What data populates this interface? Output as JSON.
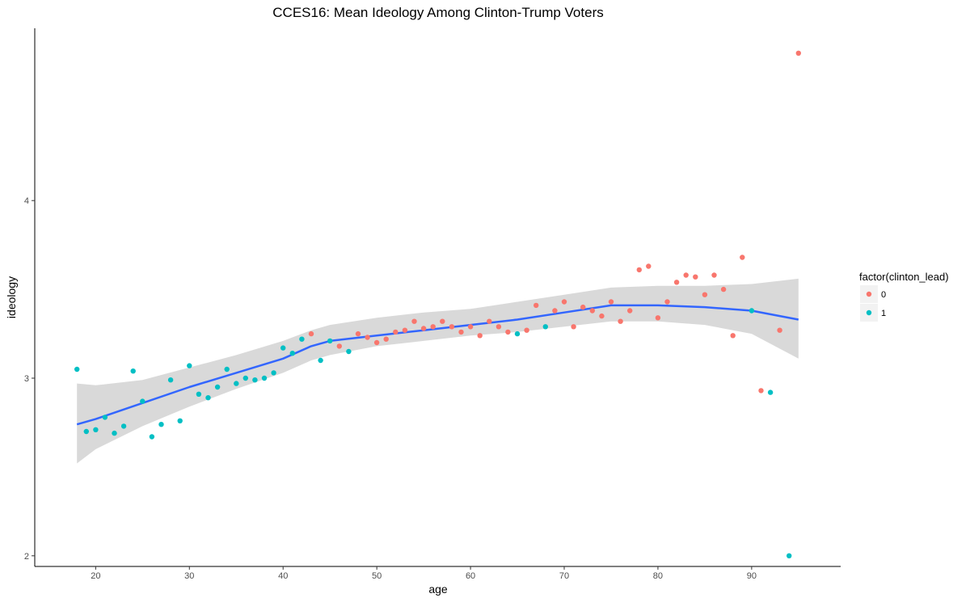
{
  "chart_data": {
    "type": "scatter",
    "title": "CCES16: Mean Ideology Among Clinton-Trump Voters",
    "xlabel": "age",
    "ylabel": "ideology",
    "xlim": [
      13.5,
      99.5
    ],
    "ylim": [
      1.94,
      4.97
    ],
    "x_ticks": [
      20,
      30,
      40,
      50,
      60,
      70,
      80,
      90
    ],
    "y_ticks": [
      2,
      3,
      4
    ],
    "grid": false,
    "legend": {
      "title": "factor(clinton_lead)",
      "position": "right",
      "entries": [
        {
          "label": "0",
          "color": "#F8766D"
        },
        {
          "label": "1",
          "color": "#00BFC4"
        }
      ]
    },
    "series": [
      {
        "name": "0",
        "color": "#F8766D",
        "points": [
          [
            43,
            3.25
          ],
          [
            46,
            3.18
          ],
          [
            48,
            3.25
          ],
          [
            49,
            3.23
          ],
          [
            50,
            3.2
          ],
          [
            51,
            3.22
          ],
          [
            52,
            3.26
          ],
          [
            53,
            3.27
          ],
          [
            54,
            3.32
          ],
          [
            55,
            3.28
          ],
          [
            56,
            3.29
          ],
          [
            57,
            3.32
          ],
          [
            58,
            3.29
          ],
          [
            59,
            3.26
          ],
          [
            60,
            3.29
          ],
          [
            61,
            3.24
          ],
          [
            62,
            3.32
          ],
          [
            63,
            3.29
          ],
          [
            64,
            3.26
          ],
          [
            66,
            3.27
          ],
          [
            67,
            3.41
          ],
          [
            69,
            3.38
          ],
          [
            70,
            3.43
          ],
          [
            71,
            3.29
          ],
          [
            72,
            3.4
          ],
          [
            73,
            3.38
          ],
          [
            74,
            3.35
          ],
          [
            75,
            3.43
          ],
          [
            76,
            3.32
          ],
          [
            77,
            3.38
          ],
          [
            78,
            3.61
          ],
          [
            79,
            3.63
          ],
          [
            80,
            3.34
          ],
          [
            81,
            3.43
          ],
          [
            82,
            3.54
          ],
          [
            83,
            3.58
          ],
          [
            84,
            3.57
          ],
          [
            85,
            3.47
          ],
          [
            86,
            3.58
          ],
          [
            87,
            3.5
          ],
          [
            88,
            3.24
          ],
          [
            89,
            3.68
          ],
          [
            91,
            2.93
          ],
          [
            93,
            3.27
          ],
          [
            95,
            4.83
          ]
        ]
      },
      {
        "name": "1",
        "color": "#00BFC4",
        "points": [
          [
            18,
            3.05
          ],
          [
            19,
            2.7
          ],
          [
            20,
            2.71
          ],
          [
            21,
            2.78
          ],
          [
            22,
            2.69
          ],
          [
            23,
            2.73
          ],
          [
            24,
            3.04
          ],
          [
            25,
            2.87
          ],
          [
            26,
            2.67
          ],
          [
            27,
            2.74
          ],
          [
            28,
            2.99
          ],
          [
            29,
            2.76
          ],
          [
            30,
            3.07
          ],
          [
            31,
            2.91
          ],
          [
            32,
            2.89
          ],
          [
            33,
            2.95
          ],
          [
            34,
            3.05
          ],
          [
            35,
            2.97
          ],
          [
            36,
            3.0
          ],
          [
            37,
            2.99
          ],
          [
            38,
            3.0
          ],
          [
            39,
            3.03
          ],
          [
            40,
            3.17
          ],
          [
            41,
            3.14
          ],
          [
            42,
            3.22
          ],
          [
            44,
            3.1
          ],
          [
            45,
            3.21
          ],
          [
            47,
            3.15
          ],
          [
            65,
            3.25
          ],
          [
            68,
            3.29
          ],
          [
            90,
            3.38
          ],
          [
            92,
            2.92
          ],
          [
            94,
            2.0
          ]
        ]
      }
    ],
    "smooth": {
      "color": "#3366FF",
      "band_color": "#d9d9d9",
      "x": [
        18,
        20,
        25,
        30,
        35,
        40,
        43,
        45,
        50,
        55,
        60,
        65,
        70,
        75,
        80,
        85,
        90,
        95
      ],
      "y": [
        2.74,
        2.77,
        2.86,
        2.95,
        3.03,
        3.11,
        3.18,
        3.21,
        3.24,
        3.27,
        3.3,
        3.33,
        3.37,
        3.41,
        3.41,
        3.4,
        3.38,
        3.33
      ],
      "lower": [
        2.52,
        2.6,
        2.73,
        2.84,
        2.94,
        3.03,
        3.1,
        3.13,
        3.18,
        3.21,
        3.24,
        3.26,
        3.29,
        3.32,
        3.32,
        3.3,
        3.25,
        3.11
      ],
      "upper": [
        2.97,
        2.96,
        2.99,
        3.06,
        3.13,
        3.21,
        3.27,
        3.3,
        3.34,
        3.37,
        3.39,
        3.43,
        3.47,
        3.51,
        3.52,
        3.52,
        3.53,
        3.56
      ]
    }
  }
}
